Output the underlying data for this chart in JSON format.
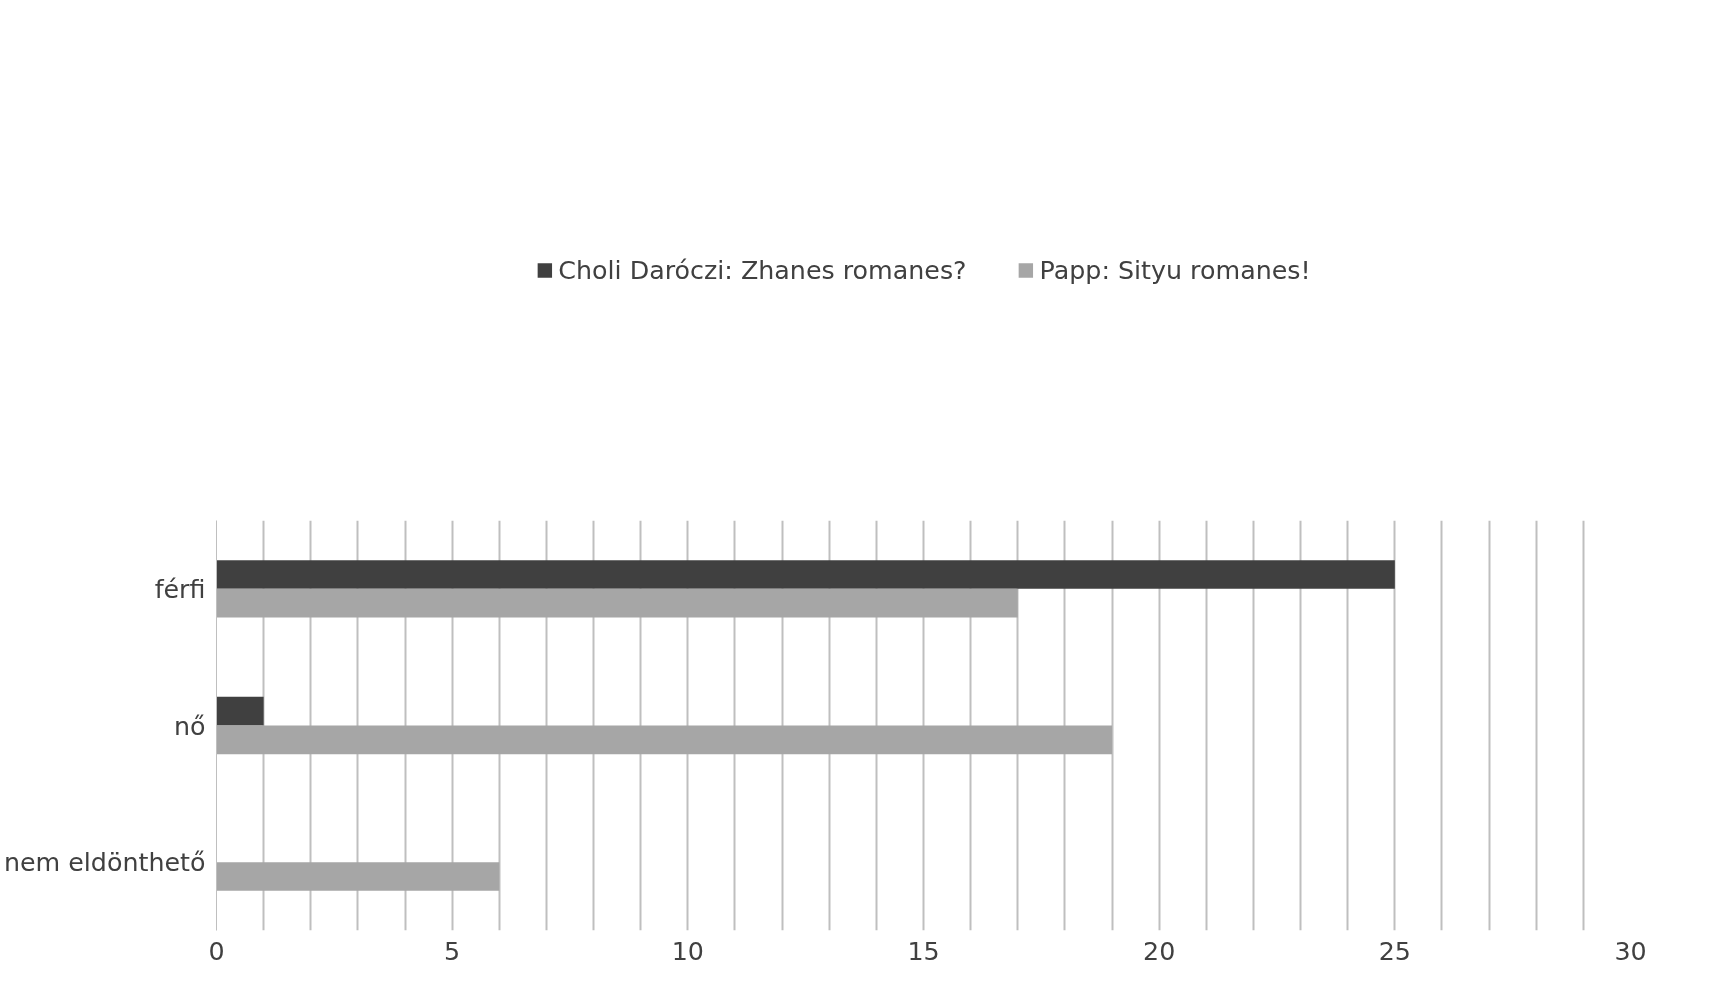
{
  "chart_data": {
    "type": "bar",
    "orientation": "horizontal",
    "categories": [
      "férfi",
      "nő",
      "nem eldönthető"
    ],
    "series": [
      {
        "name": "Choli Daróczi: Zhanes romanes?",
        "color": "#404040",
        "values": [
          25,
          1,
          0
        ]
      },
      {
        "name": "Papp: Sityu romanes!",
        "color": "#a6a6a6",
        "values": [
          17,
          19,
          6
        ]
      }
    ],
    "xlim": [
      0,
      30
    ],
    "xticks": [
      0,
      {
        "value": 1,
        "label": null
      },
      {
        "value": 2,
        "label": null
      },
      {
        "value": 3,
        "label": null
      },
      {
        "value": 4,
        "label": null
      },
      5,
      {
        "value": 6,
        "label": null
      },
      {
        "value": 7,
        "label": null
      },
      {
        "value": 8,
        "label": null
      },
      {
        "value": 9,
        "label": null
      },
      10,
      {
        "value": 11,
        "label": null
      },
      {
        "value": 12,
        "label": null
      },
      {
        "value": 13,
        "label": null
      },
      {
        "value": 14,
        "label": null
      },
      15,
      {
        "value": 16,
        "label": null
      },
      {
        "value": 17,
        "label": null
      },
      {
        "value": 18,
        "label": null
      },
      {
        "value": 19,
        "label": null
      },
      20,
      {
        "value": 21,
        "label": null
      },
      {
        "value": 22,
        "label": null
      },
      {
        "value": 23,
        "label": null
      },
      {
        "value": 24,
        "label": null
      },
      25,
      {
        "value": 26,
        "label": null
      },
      {
        "value": 27,
        "label": null
      },
      {
        "value": 28,
        "label": null
      },
      {
        "value": 29,
        "label": null
      },
      30
    ],
    "grid": "x",
    "legend": "top"
  }
}
